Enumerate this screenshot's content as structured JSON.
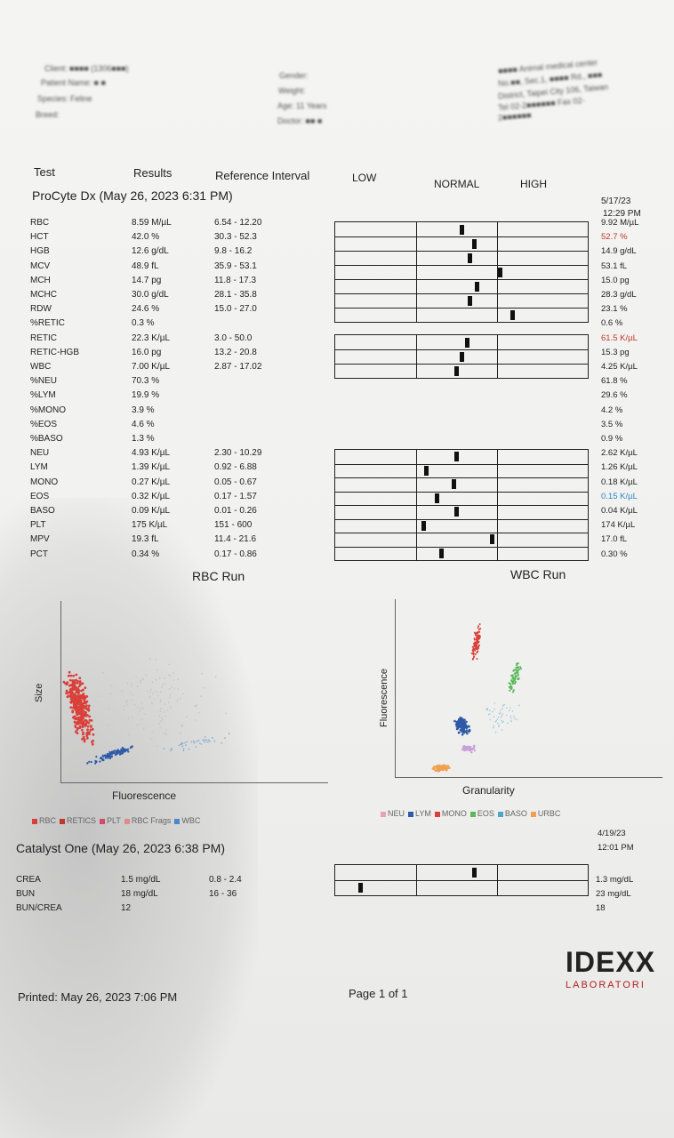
{
  "header": {
    "client_line": "Client: ■■■■ (1306■■■)",
    "patient_line": "Patient Name: ■ ■",
    "species_line": "Species: Feline",
    "breed_line": "Breed:",
    "gender_line": "Gender:",
    "weight_line": "Weight:",
    "age_line": "Age: 11 Years",
    "doctor_line": "Doctor: ■■ ■",
    "clinic_lines": [
      "■■■■ Animal medical center",
      "No.■■, Sec.1, ■■■■ Rd., ■■■",
      "District, Taipei City 106, Taiwan",
      "Tel 02-2■■■■■■ Fax 02-",
      "2■■■■■■"
    ]
  },
  "columns": {
    "test": "Test",
    "results": "Results",
    "reference": "Reference Interval",
    "low": "LOW",
    "normal": "NORMAL",
    "high": "HIGH"
  },
  "procyte": {
    "title": "ProCyte Dx (May 26, 2023 6:31 PM)",
    "prev_date": "5/17/23",
    "prev_time": "12:29 PM",
    "rows": [
      {
        "test": "RBC",
        "result": "8.59 M/µL",
        "ref": "6.54 - 12.20",
        "prev": "9.92 M/µL",
        "mark": 0.5,
        "prev_color": ""
      },
      {
        "test": "HCT",
        "result": "42.0 %",
        "ref": "30.3 - 52.3",
        "prev": "52.7 %",
        "mark": 0.55,
        "prev_color": "#c0392b"
      },
      {
        "test": "HGB",
        "result": "12.6 g/dL",
        "ref": "9.8 - 16.2",
        "prev": "14.9 g/dL",
        "mark": 0.53,
        "prev_color": ""
      },
      {
        "test": "MCV",
        "result": "48.9 fL",
        "ref": "35.9 - 53.1",
        "prev": "53.1 fL",
        "mark": 0.65,
        "prev_color": ""
      },
      {
        "test": "MCH",
        "result": "14.7 pg",
        "ref": "11.8 - 17.3",
        "prev": "15.0 pg",
        "mark": 0.56,
        "prev_color": ""
      },
      {
        "test": "MCHC",
        "result": "30.0 g/dL",
        "ref": "28.1 - 35.8",
        "prev": "28.3 g/dL",
        "mark": 0.53,
        "prev_color": ""
      },
      {
        "test": "RDW",
        "result": "24.6 %",
        "ref": "15.0 - 27.0",
        "prev": "23.1 %",
        "mark": 0.7,
        "prev_color": ""
      },
      {
        "test": "%RETIC",
        "result": "0.3 %",
        "ref": "",
        "prev": "0.6 %",
        "mark": null,
        "prev_color": ""
      },
      {
        "test": "RETIC",
        "result": "22.3 K/µL",
        "ref": "3.0 - 50.0",
        "prev": "61.5 K/µL",
        "mark": 0.52,
        "prev_color": "#c0392b"
      },
      {
        "test": "RETIC-HGB",
        "result": "16.0 pg",
        "ref": "13.2 - 20.8",
        "prev": "15.3 pg",
        "mark": 0.5,
        "prev_color": ""
      },
      {
        "test": "WBC",
        "result": "7.00 K/µL",
        "ref": "2.87 - 17.02",
        "prev": "4.25 K/µL",
        "mark": 0.48,
        "prev_color": ""
      },
      {
        "test": "%NEU",
        "result": "70.3 %",
        "ref": "",
        "prev": "61.8 %",
        "mark": null,
        "prev_color": ""
      },
      {
        "test": "%LYM",
        "result": "19.9 %",
        "ref": "",
        "prev": "29.6 %",
        "mark": null,
        "prev_color": ""
      },
      {
        "test": "%MONO",
        "result": "3.9 %",
        "ref": "",
        "prev": "4.2 %",
        "mark": null,
        "prev_color": ""
      },
      {
        "test": "%EOS",
        "result": "4.6 %",
        "ref": "",
        "prev": "3.5 %",
        "mark": null,
        "prev_color": ""
      },
      {
        "test": "%BASO",
        "result": "1.3 %",
        "ref": "",
        "prev": "0.9 %",
        "mark": null,
        "prev_color": ""
      },
      {
        "test": "NEU",
        "result": "4.93 K/µL",
        "ref": "2.30 - 10.29",
        "prev": "2.62 K/µL",
        "mark": 0.48,
        "prev_color": ""
      },
      {
        "test": "LYM",
        "result": "1.39 K/µL",
        "ref": "0.92 - 6.88",
        "prev": "1.26 K/µL",
        "mark": 0.36,
        "prev_color": ""
      },
      {
        "test": "MONO",
        "result": "0.27 K/µL",
        "ref": "0.05 - 0.67",
        "prev": "0.18 K/µL",
        "mark": 0.47,
        "prev_color": ""
      },
      {
        "test": "EOS",
        "result": "0.32 K/µL",
        "ref": "0.17 - 1.57",
        "prev": "0.15 K/µL",
        "mark": 0.4,
        "prev_color": "#2e86c1"
      },
      {
        "test": "BASO",
        "result": "0.09 K/µL",
        "ref": "0.01 - 0.26",
        "prev": "0.04 K/µL",
        "mark": 0.48,
        "prev_color": ""
      },
      {
        "test": "PLT",
        "result": "175 K/µL",
        "ref": "151 - 600",
        "prev": "174 K/µL",
        "mark": 0.35,
        "prev_color": ""
      },
      {
        "test": "MPV",
        "result": "19.3 fL",
        "ref": "11.4 - 21.6",
        "prev": "17.0 fL",
        "mark": 0.62,
        "prev_color": ""
      },
      {
        "test": "PCT",
        "result": "0.34 %",
        "ref": "0.17 - 0.86",
        "prev": "0.30 %",
        "mark": 0.42,
        "prev_color": ""
      }
    ]
  },
  "rbc_run": {
    "title": "RBC Run",
    "ylabel": "Size",
    "xlabel": "Fluorescence",
    "legend": [
      {
        "label": "RBC",
        "color": "#d9403a"
      },
      {
        "label": "RETICS",
        "color": "#c0392b"
      },
      {
        "label": "PLT",
        "color": "#d34a6b"
      },
      {
        "label": "RBC Frags",
        "color": "#e08a8a"
      },
      {
        "label": "WBC",
        "color": "#4a88c9"
      }
    ]
  },
  "wbc_run": {
    "title": "WBC Run",
    "ylabel": "Fluorescence",
    "xlabel": "Granularity",
    "legend": [
      {
        "label": "NEU",
        "color": "#e6a0c0"
      },
      {
        "label": "LYM",
        "color": "#2e5aa8"
      },
      {
        "label": "MONO",
        "color": "#d9403a"
      },
      {
        "label": "EOS",
        "color": "#5cb85c"
      },
      {
        "label": "BASO",
        "color": "#4aa8c9"
      },
      {
        "label": "URBC",
        "color": "#f0a050"
      }
    ]
  },
  "catalyst": {
    "title": "Catalyst One (May 26, 2023 6:38 PM)",
    "prev_date": "4/19/23",
    "prev_time": "12:01 PM",
    "rows": [
      {
        "test": "CREA",
        "result": "1.5 mg/dL",
        "ref": "0.8 - 2.4",
        "prev": "1.3 mg/dL",
        "mark": 0.55
      },
      {
        "test": "BUN",
        "result": "18 mg/dL",
        "ref": "16 - 36",
        "prev": "23 mg/dL",
        "mark": 0.1
      },
      {
        "test": "BUN/CREA",
        "result": "12",
        "ref": "",
        "prev": "18",
        "mark": null
      }
    ]
  },
  "footer": {
    "printed": "Printed: May 26, 2023 7:06 PM",
    "page": "Page 1 of 1",
    "logo": "IDEXX",
    "logo_sub": "LABORATORI"
  }
}
